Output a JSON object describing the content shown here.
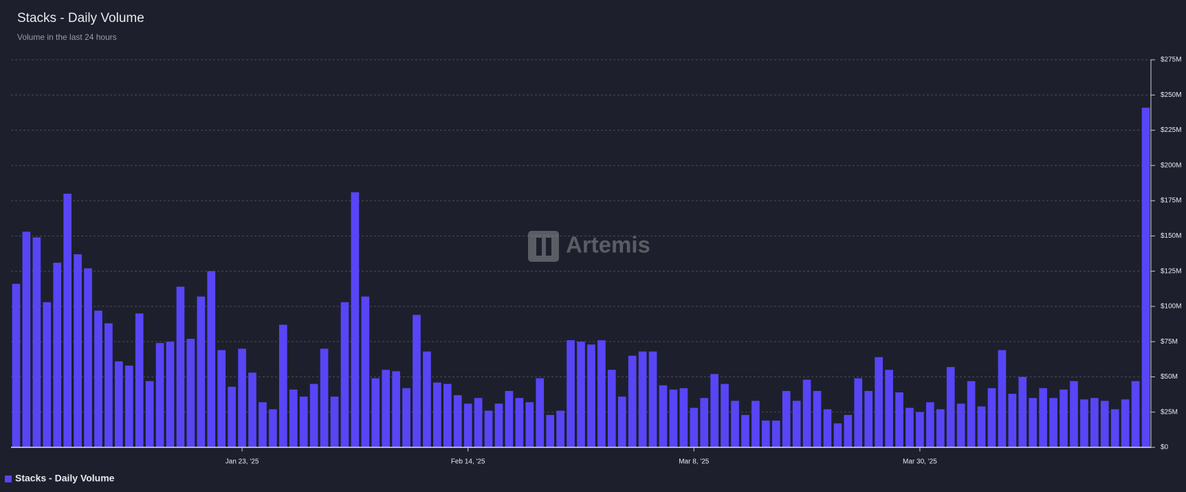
{
  "chart_data": {
    "type": "bar",
    "title": "Stacks - Daily Volume",
    "subtitle": "Volume in the last 24 hours",
    "watermark": "Artemis",
    "categories": [
      null,
      null,
      null,
      null,
      null,
      null,
      null,
      null,
      null,
      null,
      null,
      null,
      null,
      null,
      null,
      null,
      null,
      null,
      null,
      null,
      null,
      null,
      "Jan 23, '25",
      null,
      null,
      null,
      null,
      null,
      null,
      null,
      null,
      null,
      null,
      null,
      null,
      null,
      null,
      null,
      null,
      null,
      null,
      null,
      null,
      null,
      "Feb 14, '25",
      null,
      null,
      null,
      null,
      null,
      null,
      null,
      null,
      null,
      null,
      null,
      null,
      null,
      null,
      null,
      null,
      null,
      null,
      null,
      null,
      null,
      "Mar 8, '25",
      null,
      null,
      null,
      null,
      null,
      null,
      null,
      null,
      null,
      null,
      null,
      null,
      null,
      null,
      null,
      null,
      null,
      null,
      null,
      null,
      null,
      "Mar 30, '25",
      null,
      null,
      null,
      null,
      null,
      null,
      null,
      null,
      null,
      null,
      null,
      null,
      null,
      null,
      null,
      null,
      null,
      null,
      null,
      null,
      null,
      null
    ],
    "series": [
      {
        "name": "Stacks - Daily Volume",
        "color": "#5845f6",
        "values": [
          116000000,
          153000000,
          149000000,
          103000000,
          131000000,
          180000000,
          137000000,
          127000000,
          97000000,
          88000000,
          61000000,
          58000000,
          95000000,
          47000000,
          74000000,
          75000000,
          114000000,
          77000000,
          107000000,
          125000000,
          69000000,
          43000000,
          70000000,
          53000000,
          32000000,
          27000000,
          87000000,
          41000000,
          36000000,
          45000000,
          70000000,
          36000000,
          103000000,
          181000000,
          107000000,
          49000000,
          55000000,
          54000000,
          42000000,
          94000000,
          68000000,
          46000000,
          45000000,
          37000000,
          31000000,
          35000000,
          26000000,
          31000000,
          40000000,
          35000000,
          32000000,
          49000000,
          23000000,
          26000000,
          76000000,
          75000000,
          73000000,
          76000000,
          55000000,
          36000000,
          65000000,
          68000000,
          68000000,
          44000000,
          41000000,
          42000000,
          28000000,
          35000000,
          52000000,
          45000000,
          33000000,
          23000000,
          33000000,
          19000000,
          19000000,
          40000000,
          33000000,
          48000000,
          40000000,
          27000000,
          17000000,
          23000000,
          49000000,
          40000000,
          64000000,
          55000000,
          39000000,
          28000000,
          25000000,
          32000000,
          27000000,
          57000000,
          31000000,
          47000000,
          29000000,
          42000000,
          69000000,
          38000000,
          50000000,
          35000000,
          42000000,
          35000000,
          41000000,
          47000000,
          34000000,
          35000000,
          33000000,
          27000000,
          34000000,
          47000000,
          241000000
        ]
      }
    ],
    "ylim": [
      0,
      275000000
    ],
    "yticks": [
      {
        "value": 0,
        "label": "$0"
      },
      {
        "value": 25000000,
        "label": "$25M"
      },
      {
        "value": 50000000,
        "label": "$50M"
      },
      {
        "value": 75000000,
        "label": "$75M"
      },
      {
        "value": 100000000,
        "label": "$100M"
      },
      {
        "value": 125000000,
        "label": "$125M"
      },
      {
        "value": 150000000,
        "label": "$150M"
      },
      {
        "value": 175000000,
        "label": "$175M"
      },
      {
        "value": 200000000,
        "label": "$200M"
      },
      {
        "value": 225000000,
        "label": "$225M"
      },
      {
        "value": 250000000,
        "label": "$250M"
      },
      {
        "value": 275000000,
        "label": "$275M"
      }
    ],
    "grid": true,
    "legend": "bottom-left"
  }
}
